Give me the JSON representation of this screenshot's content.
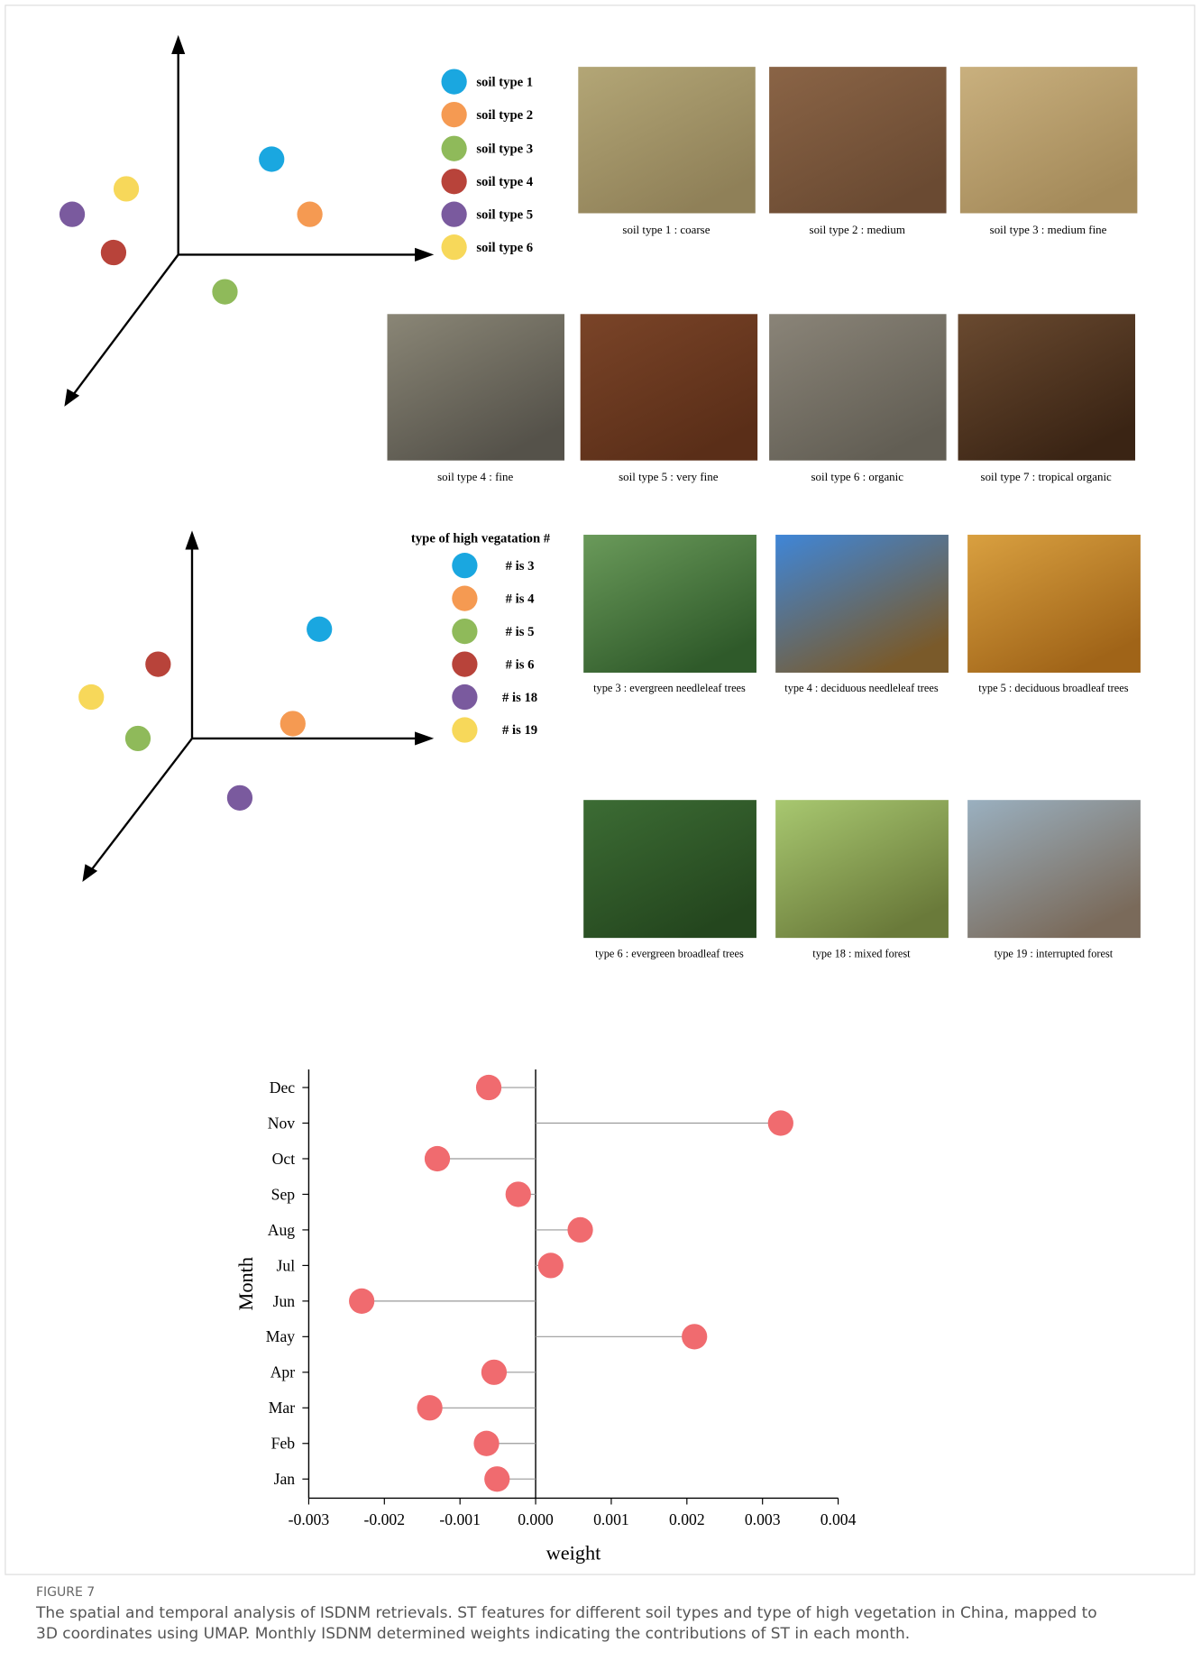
{
  "soil_legend": {
    "items": [
      {
        "label": "soil type 1",
        "color": "#1aa7e0"
      },
      {
        "label": "soil type 2",
        "color": "#f59a52"
      },
      {
        "label": "soil type 3",
        "color": "#8fba5a"
      },
      {
        "label": "soil type 4",
        "color": "#b8433a"
      },
      {
        "label": "soil type 5",
        "color": "#7a5a9e"
      },
      {
        "label": "soil type 6",
        "color": "#f7d85a"
      }
    ]
  },
  "soil_photos": [
    "soil type 1 : coarse",
    "soil type 2 : medium",
    "soil type 3 : medium fine",
    "soil type 4 : fine",
    "soil type 5 : very fine",
    "soil type 6 : organic",
    "soil type 7 : tropical organic"
  ],
  "vegetation_legend": {
    "title": "type of high vegatation #",
    "items": [
      {
        "label": "# is 3",
        "color": "#1aa7e0"
      },
      {
        "label": "# is 4",
        "color": "#f59a52"
      },
      {
        "label": "# is 5",
        "color": "#8fba5a"
      },
      {
        "label": "# is 6",
        "color": "#b8433a"
      },
      {
        "label": "# is 18",
        "color": "#7a5a9e"
      },
      {
        "label": "# is 19",
        "color": "#f7d85a"
      }
    ]
  },
  "vegetation_photos": [
    "type 3 : evergreen needleleaf trees",
    "type 4 : deciduous needleleaf trees",
    "type 5 : deciduous broadleaf trees",
    "type 6 : evergreen broadleaf trees",
    "type 18 : mixed forest",
    "type 19 : interrupted forest"
  ],
  "chart_data": {
    "type": "lollipop",
    "orientation": "horizontal",
    "categories": [
      "Jan",
      "Feb",
      "Mar",
      "Apr",
      "May",
      "Jun",
      "Jul",
      "Aug",
      "Sep",
      "Oct",
      "Nov",
      "Dec"
    ],
    "values": [
      -0.00051,
      -0.00065,
      -0.0014,
      -0.00055,
      0.0021,
      -0.0023,
      0.0002,
      0.00059,
      -0.00023,
      -0.0013,
      0.00324,
      -0.00062
    ],
    "color": "#f06b6f",
    "stem_color": "#9a9a9a",
    "xlim": [
      -0.003,
      0.004
    ],
    "xticks": [
      -0.003,
      -0.002,
      -0.001,
      {
        "value": 0,
        "label": "0.000"
      },
      0.001,
      0.002,
      0.003,
      0.004
    ],
    "x_label": "weight",
    "y_label": "Month"
  },
  "caption": {
    "label": "FIGURE 7",
    "text": "The spatial and temporal analysis of ISDNM retrievals. ST features for different soil types and type of high vegetation in China, mapped to 3D coordinates using UMAP. Monthly ISDNM determined weights indicating the contributions of ST in each month."
  }
}
